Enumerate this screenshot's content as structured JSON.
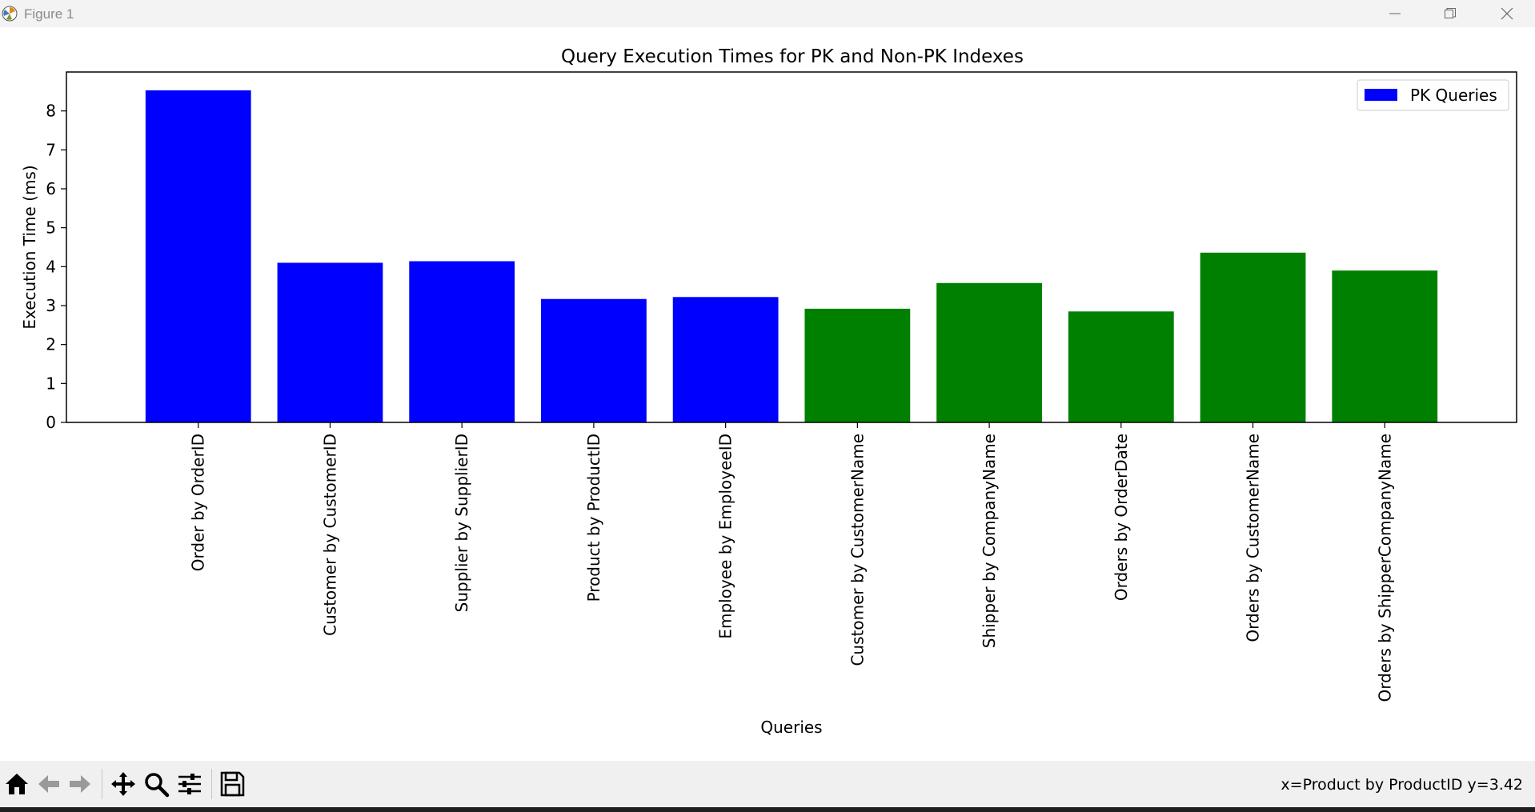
{
  "window": {
    "title": "Figure 1"
  },
  "toolbar": {
    "coords": "x=Product by ProductID y=3.42"
  },
  "colors": {
    "pk": "#0000ff",
    "nonpk": "#008000"
  },
  "chart_data": {
    "type": "bar",
    "title": "Query Execution Times for PK and Non-PK Indexes",
    "xlabel": "Queries",
    "ylabel": "Execution Time (ms)",
    "ylim": [
      0,
      9
    ],
    "yticks": [
      0,
      1,
      2,
      3,
      4,
      5,
      6,
      7,
      8
    ],
    "categories": [
      "Order by OrderID",
      "Customer by CustomerID",
      "Supplier by SupplierID",
      "Product by ProductID",
      "Employee by EmployeeID",
      "Customer by CustomerName",
      "Shipper by CompanyName",
      "Orders by OrderDate",
      "Orders by CustomerName",
      "Orders by ShipperCompanyName"
    ],
    "values": [
      8.53,
      4.1,
      4.14,
      3.17,
      3.22,
      2.92,
      3.58,
      2.85,
      4.36,
      3.9
    ],
    "bar_colors": [
      "#0000ff",
      "#0000ff",
      "#0000ff",
      "#0000ff",
      "#0000ff",
      "#008000",
      "#008000",
      "#008000",
      "#008000",
      "#008000"
    ],
    "legend": {
      "placement": "top-right",
      "entries": [
        {
          "label": "PK Queries",
          "color": "#0000ff"
        }
      ]
    },
    "grid": false
  }
}
